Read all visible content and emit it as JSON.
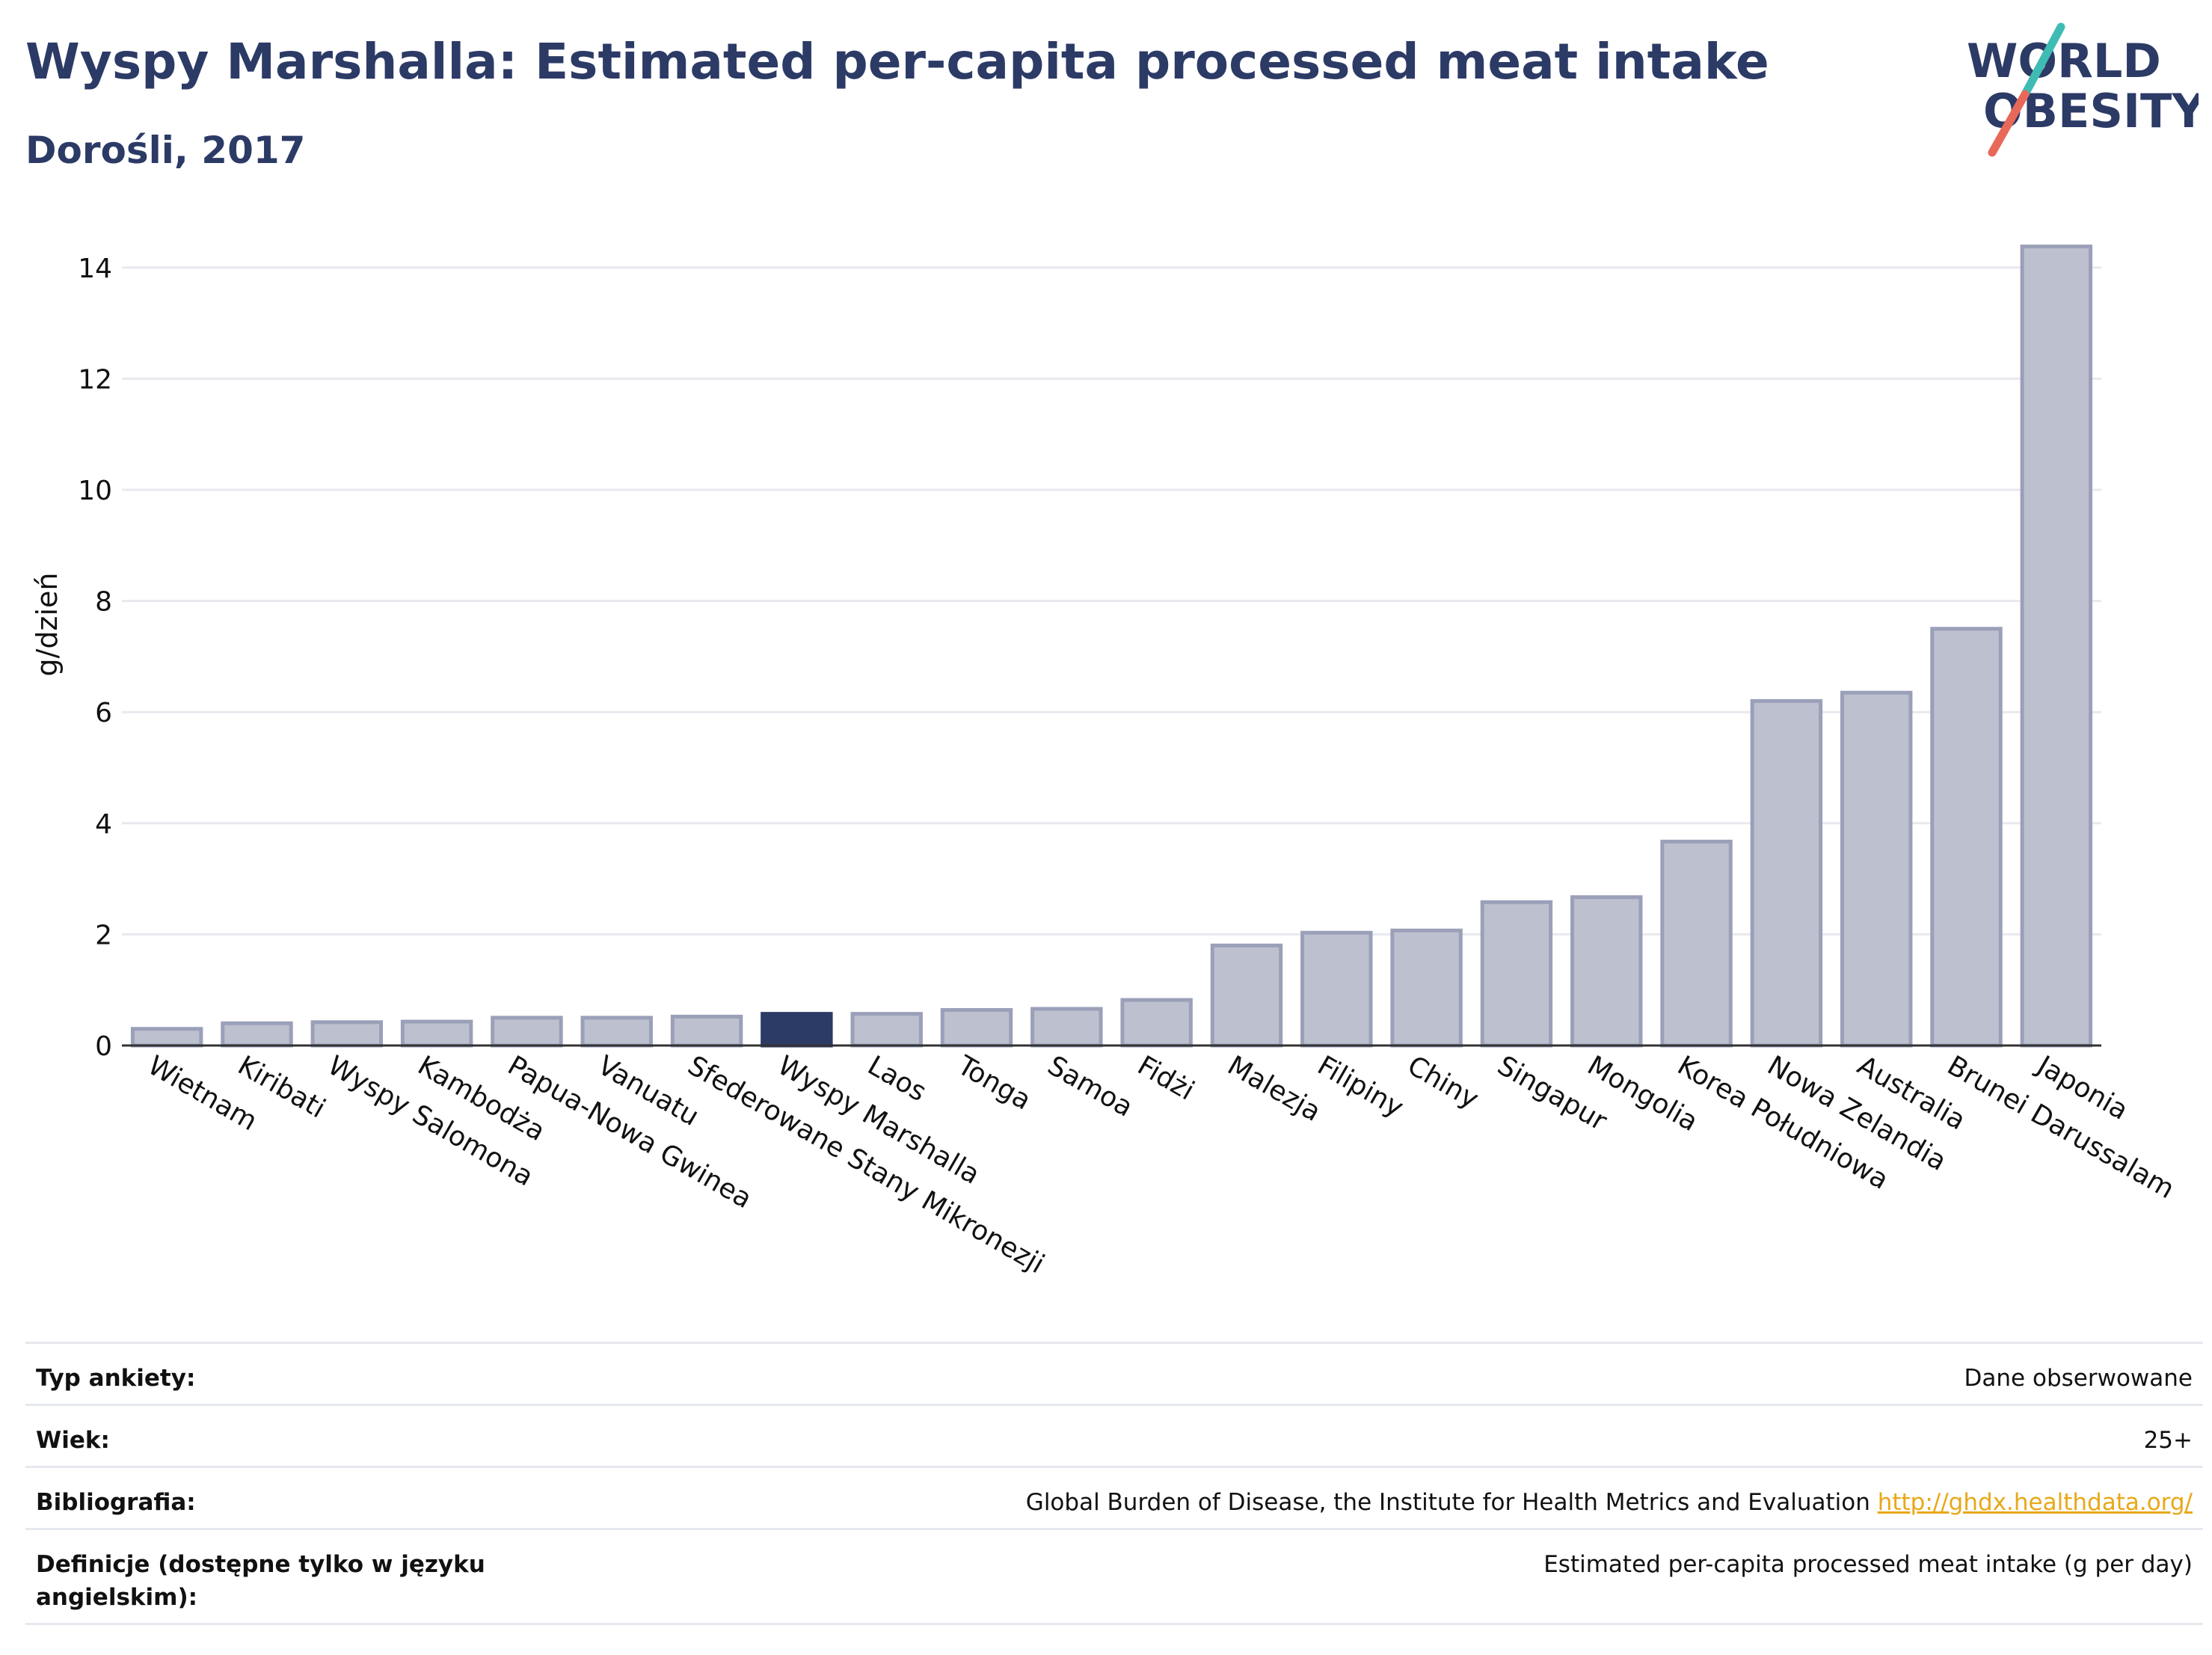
{
  "header": {
    "title": "Wyspy Marshalla: Estimated per-capita processed meat intake",
    "subtitle": "Dorośli, 2017"
  },
  "logo": {
    "line1": "WORLD",
    "line2": "OBESITY",
    "colors": {
      "text": "#2c3a66",
      "slash_top": "#3ebcb4",
      "slash_bottom": "#e8685a"
    }
  },
  "chart_data": {
    "type": "bar",
    "ylabel": "g/dzień",
    "ylim": [
      0,
      15
    ],
    "yticks": [
      0,
      2,
      4,
      6,
      8,
      10,
      12,
      14
    ],
    "grid": true,
    "highlight": "Wyspy Marshalla",
    "categories": [
      "Wietnam",
      "Kiribati",
      "Wyspy Salomona",
      "Kambodża",
      "Papua-Nowa Gwinea",
      "Vanuatu",
      "Sfederowane Stany Mikronezji",
      "Wyspy Marshalla",
      "Laos",
      "Tonga",
      "Samoa",
      "Fidżi",
      "Malezja",
      "Filipiny",
      "Chiny",
      "Singapur",
      "Mongolia",
      "Korea Południowa",
      "Nowa Zelandia",
      "Australia",
      "Brunei Darussalam",
      "Japonia"
    ],
    "values": [
      0.3,
      0.4,
      0.42,
      0.43,
      0.5,
      0.5,
      0.52,
      0.57,
      0.57,
      0.64,
      0.66,
      0.82,
      1.8,
      2.03,
      2.07,
      2.58,
      2.67,
      3.67,
      6.2,
      6.35,
      7.5,
      14.38
    ],
    "colors": {
      "bar": "#bdc0cf",
      "bar_edge": "#9aa0b8",
      "highlight": "#2c3a66",
      "grid": "#e8e9ef",
      "axis": "#333333"
    }
  },
  "info": [
    {
      "label": "Typ ankiety:",
      "value": "Dane obserwowane"
    },
    {
      "label": "Wiek:",
      "value": "25+"
    },
    {
      "label": "Bibliografia:",
      "value": "Global Burden of Disease, the Institute for Health Metrics and Evaluation",
      "link": "http://ghdx.healthdata.org/"
    },
    {
      "label": "Definicje (dostępne tylko w języku angielskim):",
      "value": "Estimated per-capita processed meat intake (g per day)"
    }
  ]
}
